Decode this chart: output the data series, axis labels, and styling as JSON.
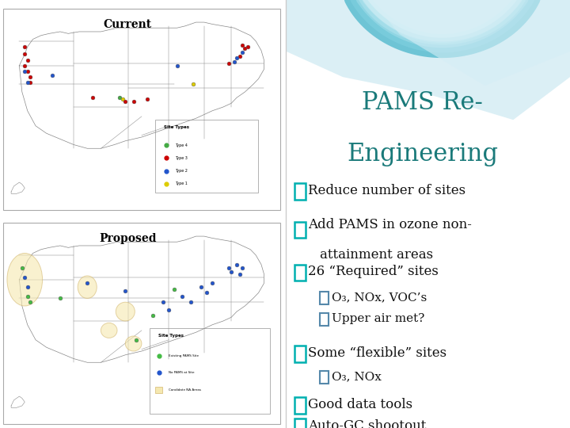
{
  "title_line1": "PAMS Re-",
  "title_line2": "Engineering",
  "title_color": "#1a7a7a",
  "bg_right": "#f0f5f8",
  "bullet_color_main": "#00b0b0",
  "bullet_color_sub": "#5588aa",
  "text_color": "#111111",
  "bullets": [
    {
      "text": "Reduce number of sites",
      "indent": 0,
      "multiline": false
    },
    {
      "text": "Add PAMS in ozone non-\nattainment areas",
      "indent": 0,
      "multiline": true
    },
    {
      "text": "26 “Required” sites",
      "indent": 0,
      "multiline": false
    },
    {
      "text": "O₃, NOx, VOC’s",
      "indent": 1,
      "multiline": false
    },
    {
      "text": "Upper air met?",
      "indent": 1,
      "multiline": false
    },
    {
      "text": "Some “flexible” sites",
      "indent": 0,
      "multiline": false
    },
    {
      "text": "O₃, NOx",
      "indent": 1,
      "multiline": false
    },
    {
      "text": "Good data tools",
      "indent": 0,
      "multiline": false
    },
    {
      "text": "Auto-GC shootout",
      "indent": 0,
      "multiline": false
    }
  ],
  "map_top_label": "Current",
  "map_bottom_label": "Proposed",
  "swoosh_colors": [
    "#7ecfdf",
    "#a8dde8",
    "#c8edf5"
  ],
  "left_bg": "#ffffff",
  "map_bg": "#e8ede8",
  "map_border": "#999999"
}
